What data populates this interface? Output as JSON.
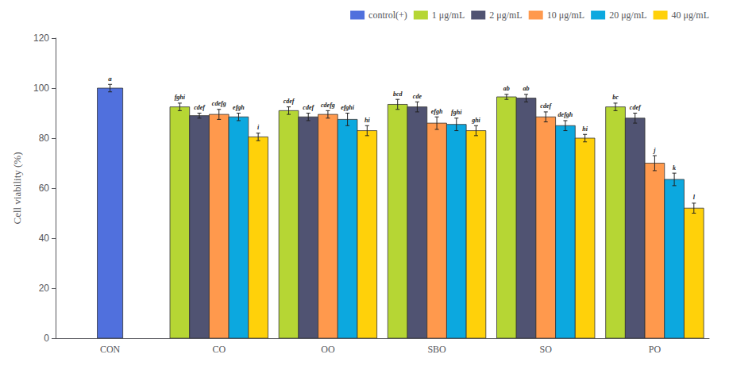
{
  "chart_data": {
    "type": "bar",
    "categories": [
      "CON",
      "CO",
      "OO",
      "SBO",
      "SO",
      "PO"
    ],
    "series": [
      {
        "name": "control(+)",
        "values": [
          100.0,
          null,
          null,
          null,
          null,
          null
        ],
        "errors": [
          1.5,
          null,
          null,
          null,
          null,
          null
        ],
        "annotations": [
          "a",
          null,
          null,
          null,
          null,
          null
        ]
      },
      {
        "name": "1 μg/mL",
        "values": [
          null,
          92.5,
          91.0,
          93.5,
          96.5,
          92.5
        ],
        "errors": [
          null,
          1.5,
          1.5,
          2.0,
          1.0,
          1.5
        ],
        "annotations": [
          null,
          "fghi",
          "cdef",
          "bcd",
          "ab",
          "bc"
        ]
      },
      {
        "name": "2 μg/mL",
        "values": [
          null,
          89.0,
          88.5,
          92.5,
          96.0,
          88.0
        ],
        "errors": [
          null,
          1.0,
          1.5,
          2.0,
          1.5,
          2.0
        ],
        "annotations": [
          null,
          "cdef",
          "cdef",
          "cde",
          "ab",
          "cdef"
        ]
      },
      {
        "name": "10 μg/mL",
        "values": [
          null,
          89.5,
          89.5,
          86.0,
          88.5,
          70.0
        ],
        "errors": [
          null,
          2.0,
          1.5,
          2.5,
          2.0,
          3.0
        ],
        "annotations": [
          null,
          "cdefg",
          "cdefg",
          "efgh",
          "cdef",
          "j"
        ]
      },
      {
        "name": "20 μg/mL",
        "values": [
          null,
          88.5,
          87.5,
          85.5,
          85.0,
          63.5
        ],
        "errors": [
          null,
          1.5,
          2.5,
          2.5,
          2.0,
          2.5
        ],
        "annotations": [
          null,
          "efgh",
          "efghi",
          "fghi",
          "defgh",
          "k"
        ]
      },
      {
        "name": "40 μg/mL",
        "values": [
          null,
          80.5,
          83.0,
          83.0,
          80.0,
          52.0
        ],
        "errors": [
          null,
          1.5,
          2.0,
          2.0,
          1.5,
          2.0
        ],
        "annotations": [
          null,
          "i",
          "hi",
          "ghi",
          "hi",
          "l"
        ]
      }
    ],
    "ylabel": "Cell viability (%)",
    "ylim": [
      0,
      120
    ],
    "yticks": [
      0,
      20,
      40,
      60,
      80,
      100,
      120
    ],
    "grid": false,
    "legend": "upper right"
  }
}
